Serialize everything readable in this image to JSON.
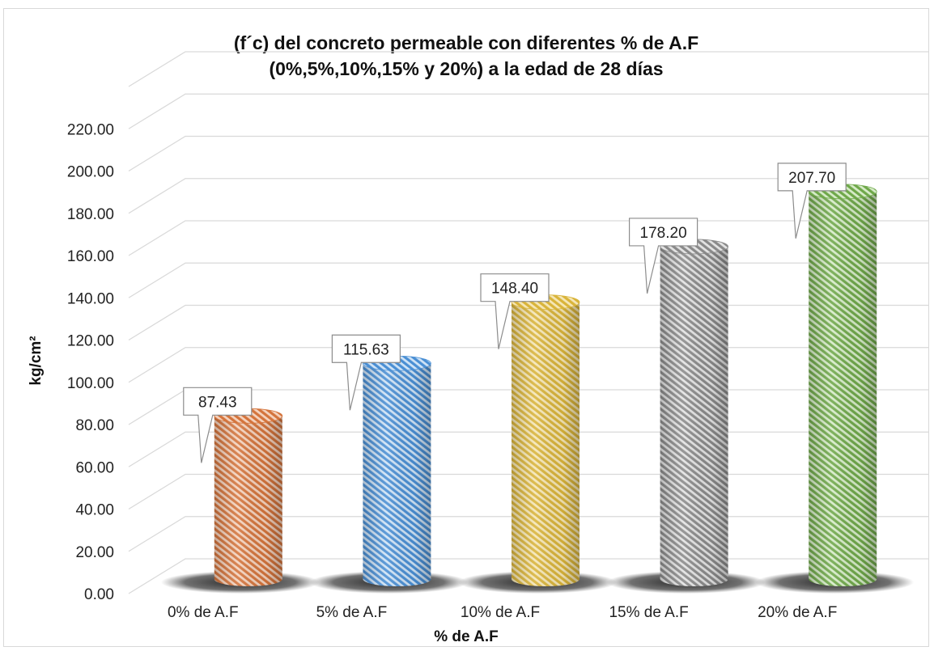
{
  "chart_data": {
    "type": "bar",
    "title": "(f´c) del concreto permeable con diferentes % de A.F (0%,5%,10%,15% y 20%) a la edad de 28 días",
    "title_lines": [
      "(f´c) del concreto permeable con diferentes % de A.F",
      "(0%,5%,10%,15% y 20%) a la edad de 28 días"
    ],
    "xlabel": "% de A.F",
    "ylabel": "kg/cm²",
    "categories": [
      "0% de A.F",
      "5% de A.F",
      "10% de A.F",
      "15% de A.F",
      "20% de A.F"
    ],
    "values": [
      87.43,
      115.63,
      148.4,
      178.2,
      207.7
    ],
    "data_labels": [
      "87.43",
      "115.63",
      "148.40",
      "178.20",
      "207.70"
    ],
    "ylim": [
      0,
      240
    ],
    "yticks": [
      "0.00",
      "20.00",
      "40.00",
      "60.00",
      "80.00",
      "100.00",
      "120.00",
      "140.00",
      "160.00",
      "180.00",
      "200.00",
      "220.00"
    ],
    "grid": true,
    "style": "3d-cylinder",
    "colors": [
      "#d4743c",
      "#4a8fd4",
      "#d9b43a",
      "#8a8a8a",
      "#6fa84a"
    ]
  }
}
